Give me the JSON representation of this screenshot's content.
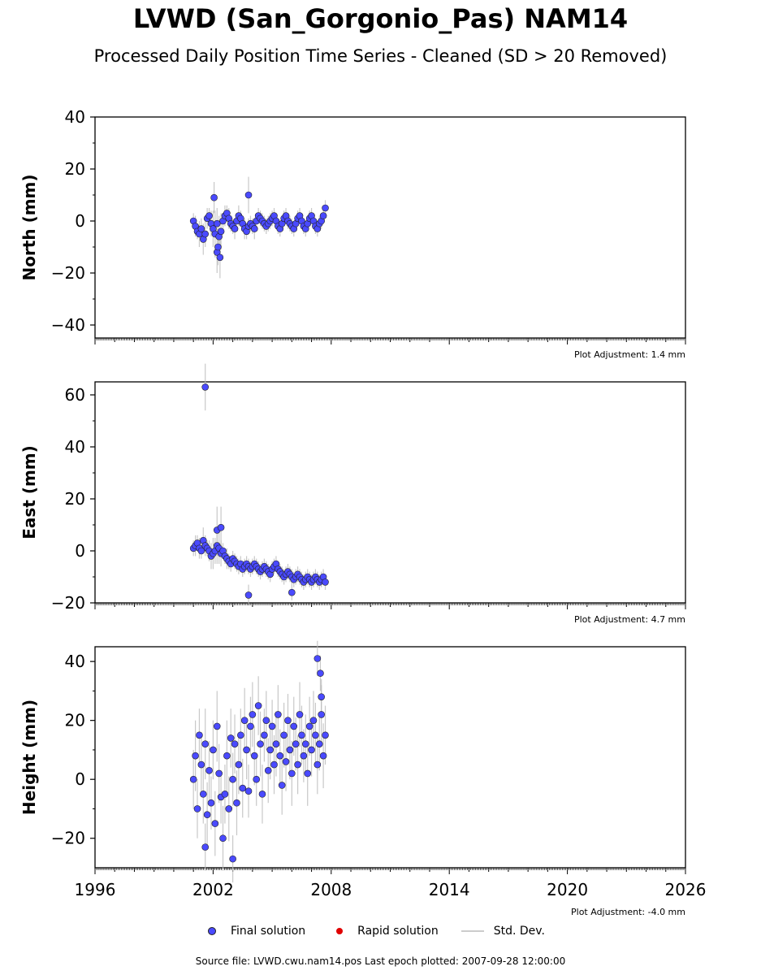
{
  "title": "LVWD (San_Gorgonio_Pas) NAM14",
  "subtitle": "Processed Daily Position Time Series - Cleaned (SD > 20 Removed)",
  "legend": {
    "final": "Final solution",
    "rapid": "Rapid solution",
    "std": "Std. Dev."
  },
  "footer": "Source file: LVWD.cwu.nam14.pos  Last epoch plotted: 2007-09-28 12:00:00",
  "colors": {
    "final": "#4a4aff",
    "rapid": "#e00000",
    "std": "#bbbbbb"
  },
  "chart_data": {
    "type": "scatter",
    "x_label": "",
    "x_range": [
      1996,
      2026
    ],
    "x_ticks": [
      1996,
      2002,
      2008,
      2014,
      2020,
      2026
    ],
    "panels": [
      {
        "name": "north",
        "ylabel": "North (mm)",
        "ylim": [
          -45,
          40
        ],
        "yticks": [
          -40,
          -20,
          0,
          20,
          40
        ],
        "adjustment": "Plot Adjustment: 1.4 mm",
        "t": [
          2001.0,
          2001.1,
          2001.2,
          2001.3,
          2001.4,
          2001.5,
          2001.6,
          2001.7,
          2001.8,
          2001.9,
          2002.0,
          2002.1,
          2002.2,
          2002.3,
          2002.4,
          2002.5,
          2002.6,
          2002.7,
          2002.8,
          2002.9,
          2003.0,
          2003.1,
          2003.2,
          2003.3,
          2003.4,
          2003.5,
          2003.6,
          2003.7,
          2003.8,
          2003.9,
          2004.0,
          2004.1,
          2004.2,
          2004.3,
          2004.4,
          2004.5,
          2004.6,
          2004.7,
          2004.8,
          2004.9,
          2005.0,
          2005.1,
          2005.2,
          2005.3,
          2005.4,
          2005.5,
          2005.6,
          2005.7,
          2005.8,
          2005.9,
          2006.0,
          2006.1,
          2006.2,
          2006.3,
          2006.4,
          2006.5,
          2006.6,
          2006.7,
          2006.8,
          2006.9,
          2007.0,
          2007.1,
          2007.2,
          2007.3,
          2007.4,
          2007.5,
          2007.6,
          2007.7,
          2002.05,
          2002.2,
          2002.25,
          2003.8,
          2002.35
        ],
        "v": [
          0,
          -2,
          -4,
          -5,
          -3,
          -7,
          -5,
          1,
          2,
          -1,
          -3,
          -5,
          -1,
          -6,
          -4,
          0,
          2,
          3,
          1,
          -1,
          -2,
          -3,
          0,
          2,
          1,
          -1,
          -3,
          -4,
          -2,
          -1,
          -2,
          -3,
          0,
          2,
          1,
          0,
          -1,
          -2,
          -1,
          0,
          1,
          2,
          0,
          -2,
          -3,
          -1,
          1,
          2,
          0,
          -1,
          -2,
          -3,
          -1,
          1,
          2,
          0,
          -2,
          -3,
          -1,
          1,
          2,
          0,
          -2,
          -3,
          -1,
          0,
          2,
          5,
          9,
          -12,
          -10,
          10,
          -14
        ],
        "sd": [
          3,
          4,
          3,
          5,
          4,
          6,
          5,
          4,
          3,
          5,
          7,
          9,
          6,
          8,
          7,
          3,
          4,
          3,
          4,
          3,
          3,
          4,
          3,
          4,
          3,
          3,
          4,
          3,
          3,
          3,
          3,
          4,
          3,
          3,
          3,
          3,
          3,
          3,
          3,
          3,
          3,
          3,
          3,
          3,
          3,
          3,
          3,
          3,
          3,
          3,
          3,
          3,
          3,
          3,
          3,
          3,
          3,
          3,
          3,
          3,
          3,
          3,
          3,
          3,
          3,
          3,
          3,
          3,
          6,
          8,
          7,
          7,
          8
        ]
      },
      {
        "name": "east",
        "ylabel": "East (mm)",
        "ylim": [
          -20,
          65
        ],
        "yticks": [
          -20,
          0,
          20,
          40,
          60
        ],
        "adjustment": "Plot Adjustment: 4.7 mm",
        "t": [
          2001.0,
          2001.1,
          2001.2,
          2001.3,
          2001.4,
          2001.5,
          2001.6,
          2001.7,
          2001.8,
          2001.9,
          2002.0,
          2002.1,
          2002.2,
          2002.3,
          2002.4,
          2002.5,
          2002.6,
          2002.7,
          2002.8,
          2002.9,
          2003.0,
          2003.1,
          2003.2,
          2003.3,
          2003.4,
          2003.5,
          2003.6,
          2003.7,
          2003.8,
          2003.9,
          2004.0,
          2004.1,
          2004.2,
          2004.3,
          2004.4,
          2004.5,
          2004.6,
          2004.7,
          2004.8,
          2004.9,
          2005.0,
          2005.1,
          2005.2,
          2005.3,
          2005.4,
          2005.5,
          2005.6,
          2005.7,
          2005.8,
          2005.9,
          2006.0,
          2006.1,
          2006.2,
          2006.3,
          2006.4,
          2006.5,
          2006.6,
          2006.7,
          2006.8,
          2006.9,
          2007.0,
          2007.1,
          2007.2,
          2007.3,
          2007.4,
          2007.5,
          2007.6,
          2007.7,
          2001.6,
          2003.8,
          2002.2,
          2002.4,
          2006.0
        ],
        "v": [
          1,
          2,
          3,
          1,
          0,
          4,
          2,
          1,
          0,
          -2,
          -1,
          0,
          2,
          1,
          -1,
          0,
          -2,
          -3,
          -4,
          -5,
          -3,
          -4,
          -5,
          -6,
          -5,
          -7,
          -6,
          -5,
          -6,
          -7,
          -6,
          -5,
          -6,
          -7,
          -8,
          -7,
          -6,
          -7,
          -8,
          -9,
          -7,
          -6,
          -5,
          -7,
          -8,
          -9,
          -10,
          -9,
          -8,
          -9,
          -10,
          -11,
          -10,
          -9,
          -10,
          -11,
          -12,
          -11,
          -10,
          -11,
          -12,
          -11,
          -10,
          -11,
          -12,
          -11,
          -10,
          -12,
          63,
          -17,
          8,
          9,
          -16
        ],
        "sd": [
          3,
          4,
          3,
          4,
          3,
          5,
          4,
          3,
          4,
          5,
          6,
          5,
          7,
          6,
          5,
          3,
          3,
          4,
          3,
          3,
          3,
          3,
          3,
          3,
          3,
          3,
          3,
          3,
          3,
          3,
          3,
          3,
          3,
          3,
          3,
          3,
          3,
          3,
          3,
          3,
          3,
          3,
          3,
          3,
          3,
          3,
          3,
          3,
          3,
          3,
          3,
          3,
          3,
          3,
          3,
          3,
          3,
          3,
          3,
          3,
          3,
          3,
          3,
          3,
          3,
          3,
          3,
          3,
          9,
          4,
          9,
          8,
          3
        ]
      },
      {
        "name": "height",
        "ylabel": "Height (mm)",
        "ylim": [
          -30,
          45
        ],
        "yticks": [
          -20,
          0,
          20,
          40
        ],
        "adjustment": "Plot Adjustment: -4.0 mm",
        "t": [
          2001.0,
          2001.1,
          2001.2,
          2001.3,
          2001.4,
          2001.5,
          2001.6,
          2001.7,
          2001.8,
          2001.9,
          2002.0,
          2002.1,
          2002.2,
          2002.3,
          2002.4,
          2002.5,
          2002.6,
          2002.7,
          2002.8,
          2002.9,
          2003.0,
          2003.1,
          2003.2,
          2003.3,
          2003.4,
          2003.5,
          2003.6,
          2003.7,
          2003.8,
          2003.9,
          2004.0,
          2004.1,
          2004.2,
          2004.3,
          2004.4,
          2004.5,
          2004.6,
          2004.7,
          2004.8,
          2004.9,
          2005.0,
          2005.1,
          2005.2,
          2005.3,
          2005.4,
          2005.5,
          2005.6,
          2005.7,
          2005.8,
          2005.9,
          2006.0,
          2006.1,
          2006.2,
          2006.3,
          2006.4,
          2006.5,
          2006.6,
          2006.7,
          2006.8,
          2006.9,
          2007.0,
          2007.1,
          2007.2,
          2007.3,
          2007.4,
          2007.5,
          2007.6,
          2007.7,
          2007.3,
          2007.45,
          2007.5,
          2003.0,
          2001.6
        ],
        "v": [
          0,
          8,
          -10,
          15,
          5,
          -5,
          12,
          -12,
          3,
          -8,
          10,
          -15,
          18,
          2,
          -6,
          -20,
          -5,
          8,
          -10,
          14,
          0,
          12,
          -8,
          5,
          15,
          -3,
          20,
          10,
          -4,
          18,
          22,
          8,
          0,
          25,
          12,
          -5,
          15,
          20,
          3,
          10,
          18,
          5,
          12,
          22,
          8,
          -2,
          15,
          6,
          20,
          10,
          2,
          18,
          12,
          5,
          22,
          15,
          8,
          12,
          2,
          18,
          10,
          20,
          15,
          5,
          12,
          22,
          8,
          15,
          41,
          36,
          28,
          -27,
          -23
        ],
        "sd": [
          10,
          12,
          10,
          9,
          11,
          10,
          12,
          11,
          10,
          9,
          10,
          11,
          12,
          10,
          9,
          11,
          10,
          12,
          11,
          10,
          9,
          10,
          11,
          10,
          9,
          10,
          11,
          10,
          9,
          10,
          11,
          10,
          9,
          10,
          11,
          10,
          9,
          10,
          11,
          10,
          9,
          10,
          11,
          10,
          9,
          10,
          11,
          10,
          9,
          10,
          11,
          10,
          9,
          10,
          11,
          10,
          9,
          10,
          11,
          10,
          9,
          10,
          11,
          10,
          9,
          10,
          11,
          10,
          6,
          6,
          6,
          8,
          8
        ]
      }
    ]
  }
}
